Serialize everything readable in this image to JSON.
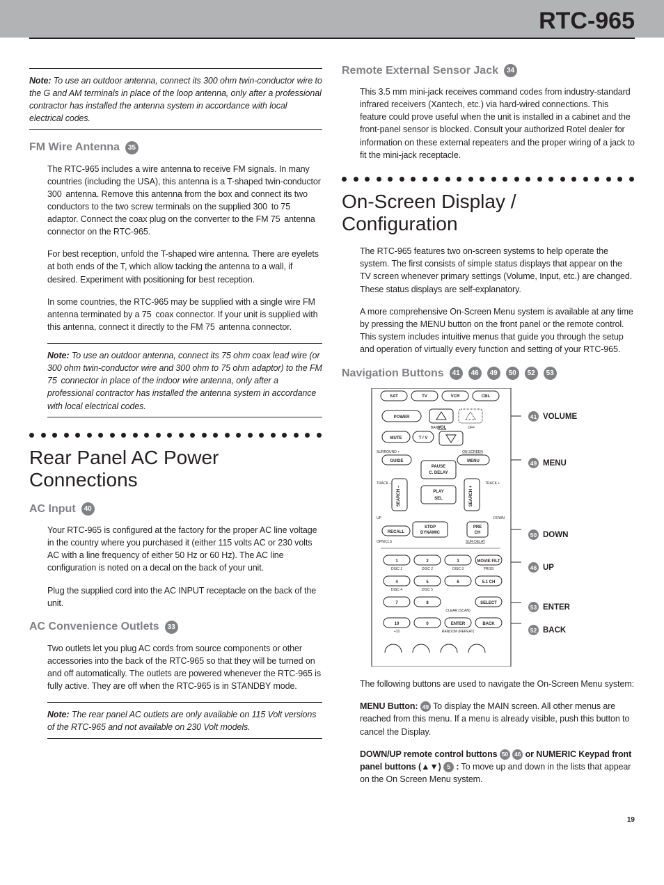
{
  "header": {
    "product": "RTC-965"
  },
  "left": {
    "note1": "To use an outdoor antenna, connect its 300 ohm twin-conductor wire to the G and AM terminals in place of the loop antenna, only after a professional contractor has installed the antenna system in accordance with local electrical codes.",
    "fmwire": {
      "heading": "FM Wire Antenna",
      "num": "35"
    },
    "fm_p1": "The RTC-965 includes a wire antenna to receive FM signals. In many countries (including the USA), this antenna is a T-shaped twin-conductor 300  antenna. Remove this antenna from the box and connect its two conductors to the two screw terminals on the supplied 300  to 75  adaptor. Connect the coax plug on the converter to the FM 75  antenna connector on the RTC-965.",
    "fm_p2": "For best reception, unfold the T-shaped wire antenna. There are eyelets at both ends of the T, which allow tacking the antenna to a wall, if desired. Experiment with positioning for best reception.",
    "fm_p3": "In some countries, the RTC-965 may be supplied with a single wire FM antenna terminated by a 75  coax connector. If your unit is supplied with this antenna, connect it directly to the FM 75  antenna connector.",
    "note2": "To use an outdoor antenna, connect its 75 ohm coax lead wire (or 300 ohm twin-conductor wire and 300 ohm to 75 ohm adaptor) to the FM 75  connector in place of the indoor wire antenna, only after a professional contractor has installed the antenna system in accordance with local electrical codes.",
    "rear_heading": "Rear Panel AC Power Connections",
    "ac_input": {
      "heading": "AC Input",
      "num": "40"
    },
    "ac_p1": "Your RTC-965 is configured at the factory for the proper AC line voltage in the country where you purchased it (either 115 volts AC or 230 volts AC with a line frequency of either 50 Hz or 60 Hz). The AC line configuration is noted on a decal on the back of your unit.",
    "ac_p2": "Plug the supplied cord into the AC INPUT receptacle on the back of the unit.",
    "ac_conv": {
      "heading": "AC Convenience Outlets",
      "num": "33"
    },
    "ac_conv_p": "Two outlets let you plug AC cords from source components or other accessories into the back of the RTC-965 so that they will be turned on and off automatically. The outlets are powered whenever the RTC-965 is fully active. They are off when the RTC-965 is in STANDBY mode.",
    "note3": "The rear panel AC outlets are only available on 115 Volt versions of the RTC-965 and not available on 230 Volt models."
  },
  "right": {
    "remote_ext": {
      "heading": "Remote External Sensor Jack",
      "num": "34"
    },
    "remote_ext_p": "This 3.5 mm mini-jack receives command codes from industry-standard infrared receivers (Xantech, etc.) via hard-wired connections. This feature could prove useful when the unit is installed in a cabinet and the front-panel sensor is blocked. Consult your authorized Rotel dealer for information on these external repeaters and the proper wiring of a jack to fit the mini-jack receptacle.",
    "osd_heading": "On-Screen Display / Configuration",
    "osd_p1": "The RTC-965 features two on-screen systems to help operate the system. The first consists of simple status displays that appear on the TV screen whenever primary settings (Volume, Input, etc.) are changed. These status displays are self-explanatory.",
    "osd_p2": "A more comprehensive On-Screen Menu system is available at any time by pressing the MENU button on the front panel or the remote control. This system includes intuitive menus that guide you through the setup and operation of virtually every function and setting of your RTC-965.",
    "nav": {
      "heading": "Navigation Buttons",
      "nums": [
        "41",
        "46",
        "49",
        "50",
        "52",
        "53"
      ]
    },
    "remote_labels": [
      {
        "num": "41",
        "label": "VOLUME"
      },
      {
        "num": "49",
        "label": "MENU"
      },
      {
        "num": "50",
        "label": "DOWN"
      },
      {
        "num": "46",
        "label": "UP"
      },
      {
        "num": "53",
        "label": "ENTER"
      },
      {
        "num": "52",
        "label": "BACK"
      }
    ],
    "remote": {
      "top": [
        "SAT",
        "TV",
        "VCR",
        "CBL"
      ],
      "power": "POWER",
      "band": "BAND",
      "vol": "VOL",
      "off": "OFF",
      "mute": "MUTE",
      "tv": "T / V",
      "surround": "SURROUND +",
      "onscreen": "ON SCREEN",
      "guide": "GUIDE",
      "menu": "MENU",
      "pause": "PAUSE",
      "cdelay": "C. DELAY",
      "trackm": "TRACK –",
      "trackp": "TRACK +",
      "searchm": "SEARCH –",
      "searchp": "SEARCH +",
      "play": "PLAY",
      "sel": "SEL",
      "up": "UP",
      "down": "DOWN",
      "stop": "STOP",
      "dynamic": "DYNAMIC",
      "pre": "PRE",
      "ch": "CH",
      "recall": "RECALL",
      "opn": "OPN/CLS",
      "surdelay": "SUR-DELAY",
      "keypad_items": [
        "1",
        "2",
        "3",
        "MOVIE FILT",
        "4",
        "5",
        "6",
        "5.1 CH",
        "7",
        "8",
        "",
        "SELECT",
        "10",
        "0",
        "ENTER",
        "BACK"
      ],
      "disc_labels": [
        "DISC 1",
        "DISC 2",
        "DISC 3",
        "PROG",
        "DISC 4",
        "DISC 5",
        "",
        "",
        "",
        "",
        "CLEAR (SCAN)",
        "",
        "+10",
        "",
        "RANDOM (REPEAT)",
        ""
      ],
      "plus10": "+10",
      "random": "RANDOM (REPEAT)",
      "clear": "CLEAR (SCAN)"
    },
    "nav_body_p1": "The following buttons are used to navigate the On-Screen Menu system:",
    "menu_btn_label": "MENU Button:",
    "menu_btn_num": "49",
    "menu_btn_text": " To display the MAIN screen. All other menus are reached from this menu. If a menu is already visible, push this button to cancel the Display.",
    "downup_label1": "DOWN/UP remote control buttons ",
    "downup_n1": "50",
    "downup_n2": "46",
    "downup_label2": " or NUMERIC Keypad front panel buttons (▲▼) ",
    "downup_n3": "5",
    "downup_label3": " :",
    "downup_text": " To move up and down in the lists that appear on the On Screen Menu system."
  },
  "page_number": "19"
}
